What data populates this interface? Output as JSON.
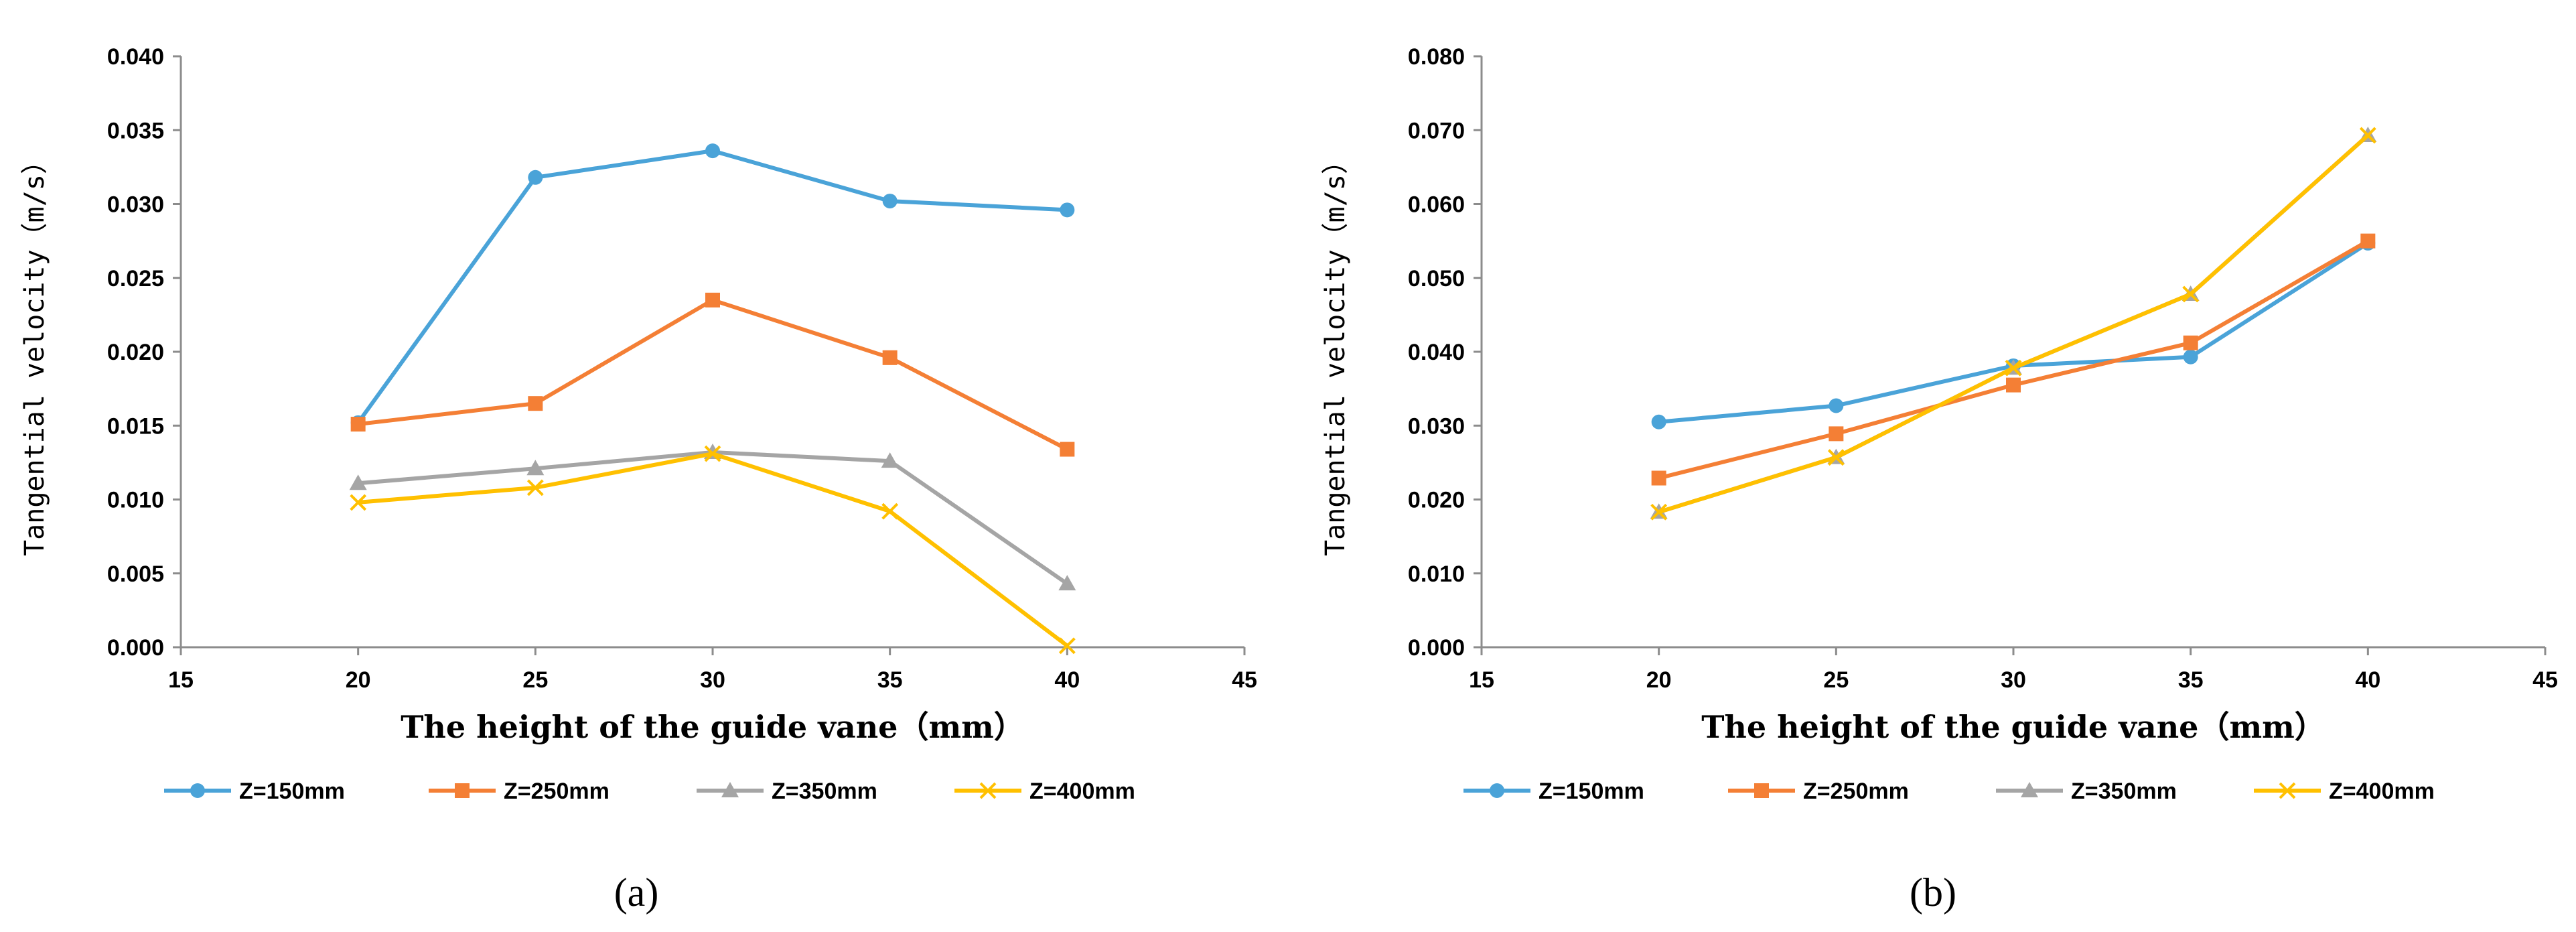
{
  "chart_data": [
    {
      "type": "line",
      "panel_label": "(a)",
      "xlabel": "The height of the guide vane（mm）",
      "ylabel": "Tangential velocity（m/s）",
      "xlim": [
        15,
        45
      ],
      "ylim": [
        0,
        0.04
      ],
      "xticks": [
        "15",
        "20",
        "25",
        "30",
        "35",
        "40",
        "45"
      ],
      "yticks": [
        "0.000",
        "0.005",
        "0.010",
        "0.015",
        "0.020",
        "0.025",
        "0.030",
        "0.035",
        "0.040"
      ],
      "legend_position": "bottom",
      "x": [
        20,
        25,
        30,
        35,
        40
      ],
      "series": [
        {
          "name": "Z=150mm",
          "color": "#4aa3d8",
          "marker": "circle",
          "values": [
            0.0152,
            0.0318,
            0.0336,
            0.0302,
            0.0296
          ]
        },
        {
          "name": "Z=250mm",
          "color": "#f47f35",
          "marker": "square",
          "values": [
            0.0151,
            0.0165,
            0.0235,
            0.0196,
            0.0134
          ]
        },
        {
          "name": "Z=350mm",
          "color": "#a5a5a5",
          "marker": "triangle",
          "values": [
            0.0111,
            0.0121,
            0.0132,
            0.0126,
            0.0043
          ]
        },
        {
          "name": "Z=400mm",
          "color": "#ffc000",
          "marker": "x",
          "values": [
            0.0098,
            0.0108,
            0.0131,
            0.0092,
            0.0001
          ]
        }
      ]
    },
    {
      "type": "line",
      "panel_label": "(b)",
      "xlabel": "The height of the guide vane（mm）",
      "ylabel": "Tangential velocity（m/s）",
      "xlim": [
        15,
        45
      ],
      "ylim": [
        0,
        0.08
      ],
      "xticks": [
        "15",
        "20",
        "25",
        "30",
        "35",
        "40",
        "45"
      ],
      "yticks": [
        "0.000",
        "0.010",
        "0.020",
        "0.030",
        "0.040",
        "0.050",
        "0.060",
        "0.070",
        "0.080"
      ],
      "legend_position": "bottom",
      "x": [
        20,
        25,
        30,
        35,
        40
      ],
      "series": [
        {
          "name": "Z=150mm",
          "color": "#4aa3d8",
          "marker": "circle",
          "values": [
            0.0305,
            0.0327,
            0.0381,
            0.0393,
            0.0547
          ]
        },
        {
          "name": "Z=250mm",
          "color": "#f47f35",
          "marker": "square",
          "values": [
            0.0229,
            0.0289,
            0.0355,
            0.0412,
            0.055
          ]
        },
        {
          "name": "Z=350mm",
          "color": "#a5a5a5",
          "marker": "triangle",
          "values": [
            0.0183,
            0.0257,
            0.0378,
            0.0478,
            0.0693
          ]
        },
        {
          "name": "Z=400mm",
          "color": "#ffc000",
          "marker": "x",
          "values": [
            0.0183,
            0.0257,
            0.0378,
            0.0478,
            0.0693
          ]
        }
      ]
    }
  ]
}
